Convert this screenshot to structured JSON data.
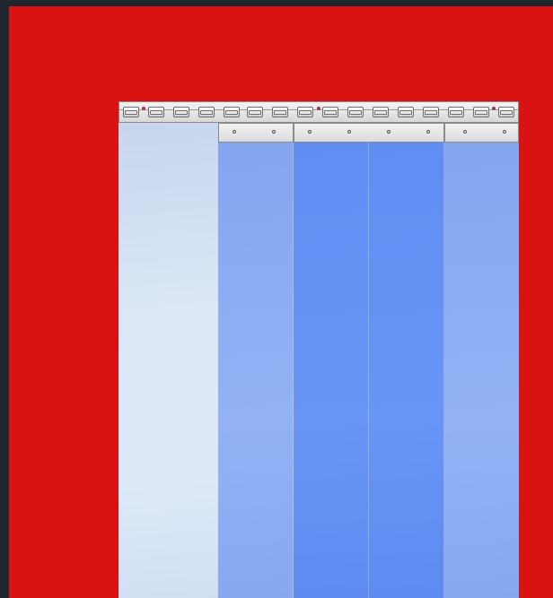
{
  "screen": {
    "background_color": "#d91212",
    "frame_color": "#1f262d"
  },
  "product_image": {
    "subject": "strip-curtain-illustration",
    "rail": {
      "color": "#e4e4e4",
      "clip_count": 16,
      "screw_color": "#a8323a"
    },
    "strips": [
      {
        "tint": "clear",
        "color": "#d8e5f6"
      },
      {
        "tint": "light-blue",
        "color": "#8aacf2"
      },
      {
        "tint": "blue",
        "color": "#6190f4"
      },
      {
        "tint": "blue",
        "color": "#6190f4"
      },
      {
        "tint": "light-blue",
        "color": "#8aacf2"
      }
    ]
  }
}
